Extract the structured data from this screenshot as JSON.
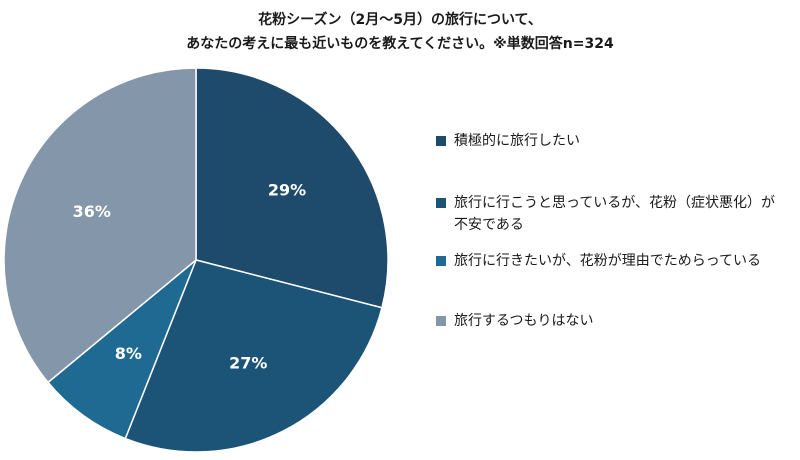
{
  "title": {
    "line1": "花粉シーズン（2月～5月）の旅行について、",
    "line2": "あなたの考えに最も近いものを教えてください。※単数回答n=324"
  },
  "chart_data": {
    "type": "pie",
    "categories": [
      "積極的に旅行したい",
      "旅行に行こうと思っているが、花粉（症状悪化）が不安である",
      "旅行に行きたいが、花粉が理由でためらっている",
      "旅行するつもりはない"
    ],
    "values": [
      29,
      27,
      8,
      36
    ],
    "labels": [
      "29%",
      "27%",
      "8%",
      "36%"
    ],
    "colors": [
      "#1e4a6b",
      "#1c5478",
      "#1e6a92",
      "#8497aa"
    ],
    "legend_position": "right"
  },
  "legend": {
    "items": [
      {
        "label": "積極的に旅行したい",
        "color": "#1e4a6b"
      },
      {
        "label": "旅行に行こうと思っているが、花粉（症状悪化）が不安である",
        "color": "#1c5478"
      },
      {
        "label": "旅行に行きたいが、花粉が理由でためらっている",
        "color": "#1e6a92"
      },
      {
        "label": "旅行するつもりはない",
        "color": "#8497aa"
      }
    ]
  }
}
